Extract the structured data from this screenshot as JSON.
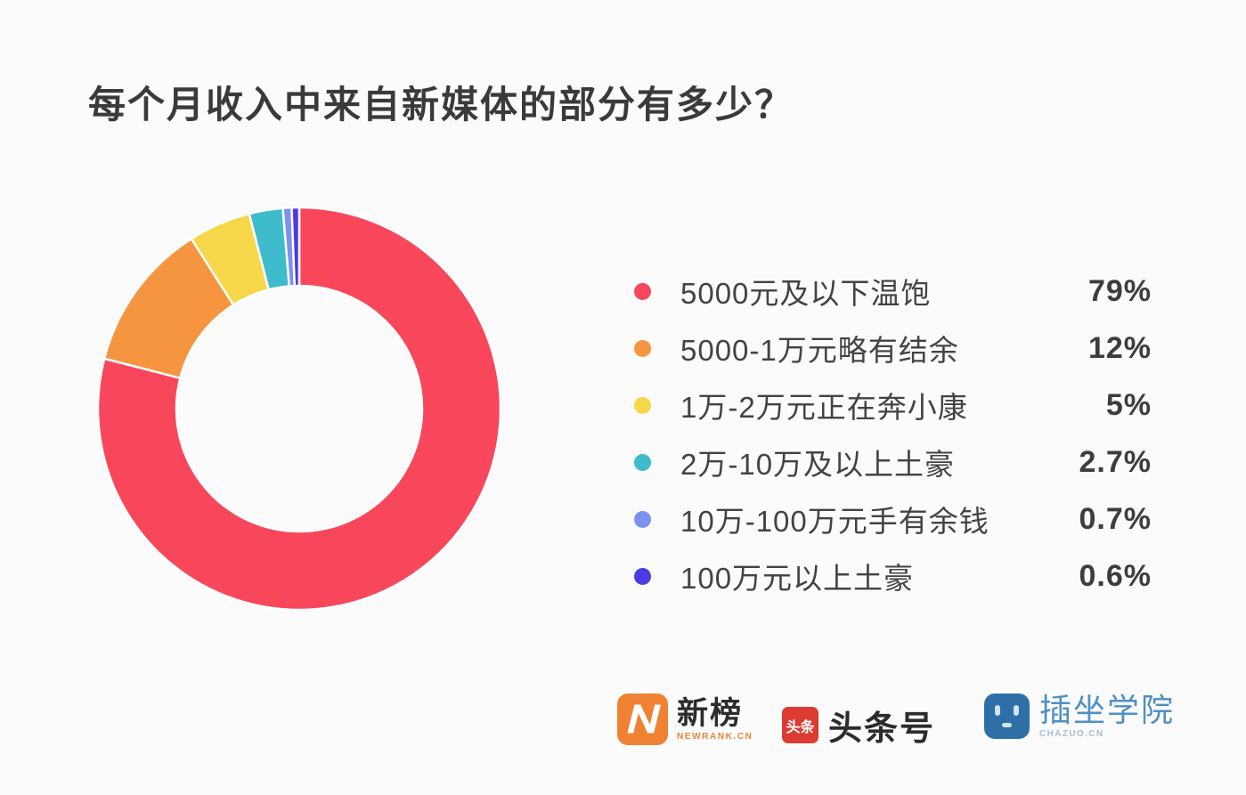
{
  "page": {
    "background": "#fcfbfb"
  },
  "title": "每个月收入中来自新媒体的部分有多少？",
  "chart_data": {
    "type": "pie",
    "subtype": "donut",
    "title": "每个月收入中来自新媒体的部分有多少？",
    "unit": "%",
    "start_angle_deg": -90,
    "direction": "clockwise",
    "legend_position": "right",
    "slices": [
      {
        "label": "5000元及以下温饱",
        "value": 79,
        "display": "79%",
        "color": "#f8475a"
      },
      {
        "label": "5000-1万元略有结余",
        "value": 12,
        "display": "12%",
        "color": "#f6953f"
      },
      {
        "label": "1万-2万元正在奔小康",
        "value": 5,
        "display": "5%",
        "color": "#f6d74a"
      },
      {
        "label": "2万-10万及以上土豪",
        "value": 2.7,
        "display": "2.7%",
        "color": "#3fbccb"
      },
      {
        "label": "10万-100万元手有余钱",
        "value": 0.7,
        "display": "0.7%",
        "color": "#7d92ef"
      },
      {
        "label": "100万元以上土豪",
        "value": 0.6,
        "display": "0.6%",
        "color": "#4c3be2"
      }
    ]
  },
  "footer": {
    "brands": [
      {
        "name": "新榜",
        "sub": "NEWRANK.CN",
        "icon": "newrank-logo",
        "color": "#ef8232"
      },
      {
        "name": "头条号",
        "icon_text": "头条",
        "icon": "toutiao-logo",
        "color": "#dc3b32"
      },
      {
        "name": "插坐学院",
        "sub": "CHAZUO.CN",
        "icon": "chazuo-logo",
        "color": "#2e6fa8",
        "text_color": "#4e8fc4"
      }
    ]
  }
}
